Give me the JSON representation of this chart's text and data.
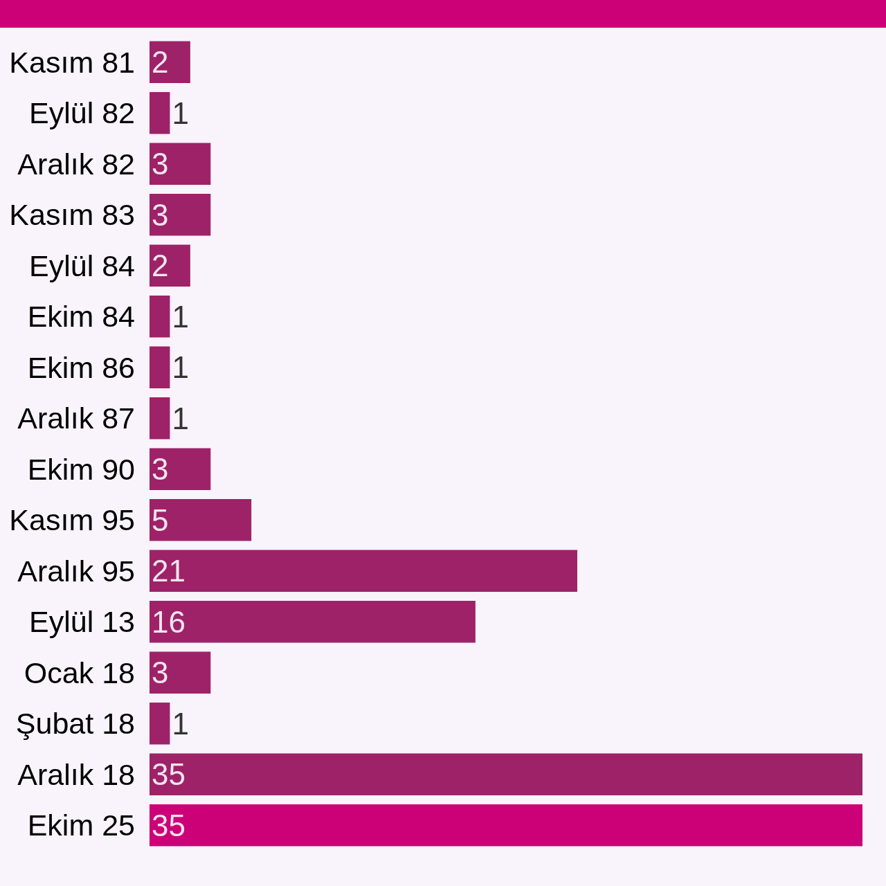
{
  "chart_data": {
    "type": "bar",
    "orientation": "horizontal",
    "categories": [
      "Kasım 81",
      "Eylül 82",
      "Aralık 82",
      "Kasım 83",
      "Eylül 84",
      "Ekim 84",
      "Ekim 86",
      "Aralık 87",
      "Ekim 90",
      "Kasım 95",
      "Aralık 95",
      "Eylül 13",
      "Ocak 18",
      "Şubat 18",
      "Aralık 18",
      "Ekim 25"
    ],
    "values": [
      2,
      1,
      3,
      3,
      2,
      1,
      1,
      1,
      3,
      5,
      21,
      16,
      3,
      1,
      35,
      35
    ],
    "colors": [
      "#9e2268",
      "#9e2268",
      "#9e2268",
      "#9e2268",
      "#9e2268",
      "#9e2268",
      "#9e2268",
      "#9e2268",
      "#9e2268",
      "#9e2268",
      "#9e2268",
      "#9e2268",
      "#9e2268",
      "#9e2268",
      "#9e2268",
      "#cc0077"
    ],
    "data_labels": true
  }
}
